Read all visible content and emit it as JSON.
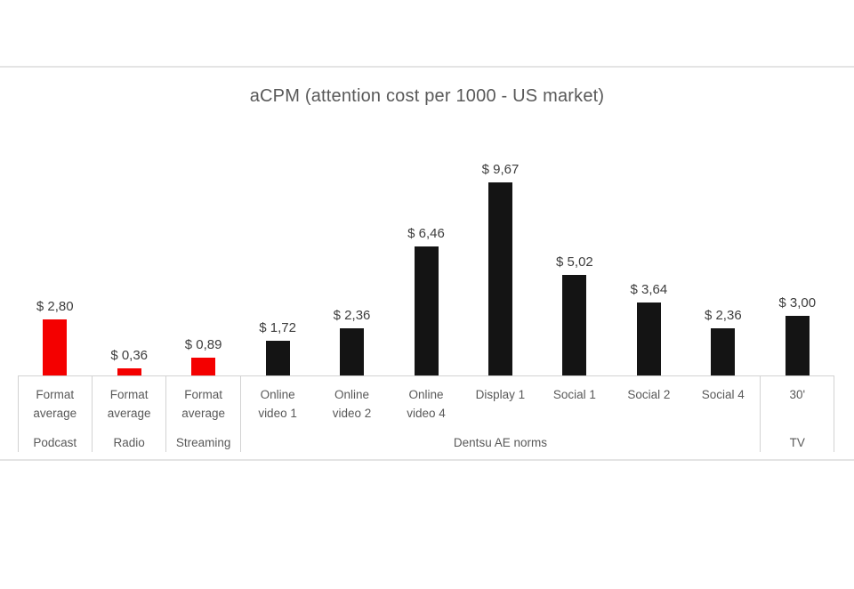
{
  "chart_data": {
    "type": "bar",
    "title": "aCPM (attention cost per 1000 - US market)",
    "xlabel": "",
    "ylabel": "",
    "ylim": [
      0,
      10
    ],
    "grid": false,
    "legend_position": "none",
    "value_format": "dollar with comma decimal",
    "categories": [
      "Format average",
      "Format average",
      "Format average",
      "Online video 1",
      "Online video 2",
      "Online video 4",
      "Display 1",
      "Social 1",
      "Social 2",
      "Social 4",
      "30'"
    ],
    "category_label_lines": [
      [
        "Format",
        "average"
      ],
      [
        "Format",
        "average"
      ],
      [
        "Format",
        "average"
      ],
      [
        "Online",
        "video 1"
      ],
      [
        "Online",
        "video 2"
      ],
      [
        "Online",
        "video 4"
      ],
      [
        "Display 1"
      ],
      [
        "Social 1"
      ],
      [
        "Social 2"
      ],
      [
        "Social 4"
      ],
      [
        "30'"
      ]
    ],
    "values": [
      2.8,
      0.36,
      0.89,
      1.72,
      2.36,
      6.46,
      9.67,
      5.02,
      3.64,
      2.36,
      3.0
    ],
    "value_labels": [
      "$ 2,80",
      "$ 0,36",
      "$ 0,89",
      "$ 1,72",
      "$ 2,36",
      "$ 6,46",
      "$ 9,67",
      "$ 5,02",
      "$ 3,64",
      "$ 2,36",
      "$ 3,00"
    ],
    "bar_colors": [
      "#f40000",
      "#f40000",
      "#f40000",
      "#141414",
      "#141414",
      "#141414",
      "#141414",
      "#141414",
      "#141414",
      "#141414",
      "#141414"
    ],
    "groups": [
      {
        "label": "Podcast",
        "start": 0,
        "span": 1
      },
      {
        "label": "Radio",
        "start": 1,
        "span": 1
      },
      {
        "label": "Streaming",
        "start": 2,
        "span": 1
      },
      {
        "label": "Dentsu AE norms",
        "start": 3,
        "span": 7
      },
      {
        "label": "TV",
        "start": 10,
        "span": 1
      }
    ],
    "colors": {
      "highlight_bar": "#f40000",
      "default_bar": "#141414",
      "title_text": "#595959",
      "axis_label_text": "#595959",
      "value_label_text": "#3d3d3d",
      "axis_line": "#d2d2d2",
      "page_divider": "#e4e4e4"
    }
  }
}
